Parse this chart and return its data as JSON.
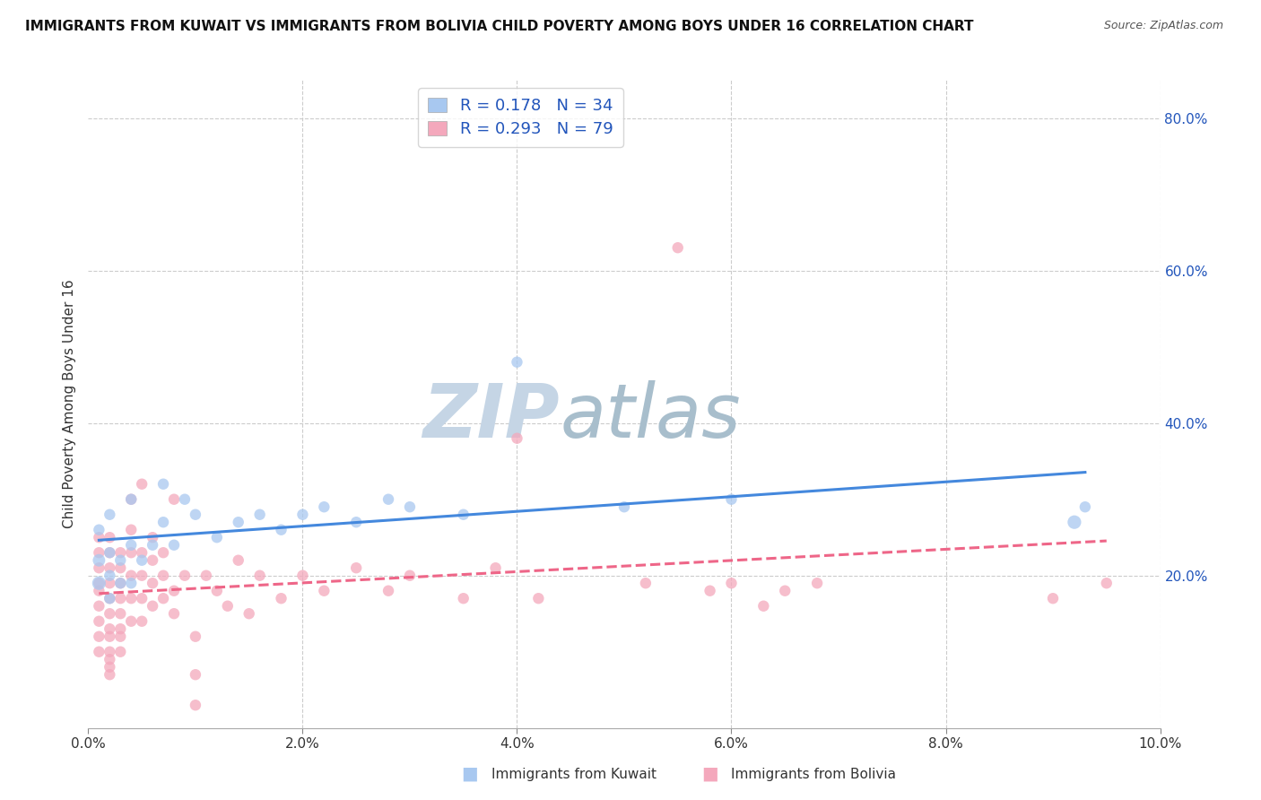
{
  "title": "IMMIGRANTS FROM KUWAIT VS IMMIGRANTS FROM BOLIVIA CHILD POVERTY AMONG BOYS UNDER 16 CORRELATION CHART",
  "source": "Source: ZipAtlas.com",
  "ylabel": "Child Poverty Among Boys Under 16",
  "xlim": [
    0,
    0.1
  ],
  "ylim": [
    0,
    0.85
  ],
  "xticks": [
    0.0,
    0.02,
    0.04,
    0.06,
    0.08,
    0.1
  ],
  "yticks": [
    0.2,
    0.4,
    0.6,
    0.8
  ],
  "kuwait_color": "#a8c8f0",
  "bolivia_color": "#f4a8bc",
  "kuwait_line_color": "#4488dd",
  "bolivia_line_color": "#ee6688",
  "kuwait_R": 0.178,
  "kuwait_N": 34,
  "bolivia_R": 0.293,
  "bolivia_N": 79,
  "legend_text_color": "#2255bb",
  "grid_color": "#cccccc",
  "background_color": "#ffffff",
  "title_fontsize": 11,
  "axis_label_fontsize": 11,
  "tick_fontsize": 11,
  "legend_fontsize": 13,
  "kuwait_x": [
    0.001,
    0.001,
    0.001,
    0.002,
    0.002,
    0.002,
    0.002,
    0.003,
    0.003,
    0.004,
    0.004,
    0.004,
    0.005,
    0.006,
    0.007,
    0.007,
    0.008,
    0.009,
    0.01,
    0.012,
    0.014,
    0.016,
    0.018,
    0.02,
    0.022,
    0.025,
    0.028,
    0.03,
    0.035,
    0.04,
    0.05,
    0.06,
    0.092,
    0.093
  ],
  "kuwait_y": [
    0.19,
    0.22,
    0.26,
    0.17,
    0.2,
    0.23,
    0.28,
    0.19,
    0.22,
    0.19,
    0.24,
    0.3,
    0.22,
    0.24,
    0.27,
    0.32,
    0.24,
    0.3,
    0.28,
    0.25,
    0.27,
    0.28,
    0.26,
    0.28,
    0.29,
    0.27,
    0.3,
    0.29,
    0.28,
    0.48,
    0.29,
    0.3,
    0.27,
    0.29
  ],
  "kuwait_size": [
    120,
    100,
    80,
    80,
    80,
    80,
    80,
    80,
    80,
    80,
    80,
    80,
    80,
    80,
    80,
    80,
    80,
    80,
    80,
    80,
    80,
    80,
    80,
    80,
    80,
    80,
    80,
    80,
    80,
    80,
    80,
    80,
    120,
    80
  ],
  "bolivia_x": [
    0.001,
    0.001,
    0.001,
    0.001,
    0.001,
    0.001,
    0.001,
    0.001,
    0.001,
    0.002,
    0.002,
    0.002,
    0.002,
    0.002,
    0.002,
    0.002,
    0.002,
    0.002,
    0.002,
    0.002,
    0.002,
    0.003,
    0.003,
    0.003,
    0.003,
    0.003,
    0.003,
    0.003,
    0.003,
    0.004,
    0.004,
    0.004,
    0.004,
    0.004,
    0.004,
    0.005,
    0.005,
    0.005,
    0.005,
    0.005,
    0.006,
    0.006,
    0.006,
    0.006,
    0.007,
    0.007,
    0.007,
    0.008,
    0.008,
    0.008,
    0.009,
    0.01,
    0.01,
    0.01,
    0.011,
    0.012,
    0.013,
    0.014,
    0.015,
    0.016,
    0.018,
    0.02,
    0.022,
    0.025,
    0.028,
    0.03,
    0.035,
    0.038,
    0.04,
    0.042,
    0.052,
    0.055,
    0.058,
    0.06,
    0.063,
    0.065,
    0.068,
    0.09,
    0.095
  ],
  "bolivia_y": [
    0.14,
    0.16,
    0.18,
    0.19,
    0.21,
    0.23,
    0.25,
    0.12,
    0.1,
    0.13,
    0.15,
    0.17,
    0.19,
    0.21,
    0.23,
    0.25,
    0.12,
    0.1,
    0.09,
    0.08,
    0.07,
    0.13,
    0.15,
    0.17,
    0.19,
    0.21,
    0.23,
    0.12,
    0.1,
    0.14,
    0.17,
    0.2,
    0.23,
    0.26,
    0.3,
    0.14,
    0.17,
    0.2,
    0.23,
    0.32,
    0.16,
    0.19,
    0.22,
    0.25,
    0.17,
    0.2,
    0.23,
    0.15,
    0.18,
    0.3,
    0.2,
    0.03,
    0.07,
    0.12,
    0.2,
    0.18,
    0.16,
    0.22,
    0.15,
    0.2,
    0.17,
    0.2,
    0.18,
    0.21,
    0.18,
    0.2,
    0.17,
    0.21,
    0.38,
    0.17,
    0.19,
    0.63,
    0.18,
    0.19,
    0.16,
    0.18,
    0.19,
    0.17,
    0.19
  ],
  "bolivia_size": [
    80,
    80,
    80,
    80,
    80,
    80,
    80,
    80,
    80,
    80,
    80,
    80,
    80,
    80,
    80,
    80,
    80,
    80,
    80,
    80,
    80,
    80,
    80,
    80,
    80,
    80,
    80,
    80,
    80,
    80,
    80,
    80,
    80,
    80,
    80,
    80,
    80,
    80,
    80,
    80,
    80,
    80,
    80,
    80,
    80,
    80,
    80,
    80,
    80,
    80,
    80,
    80,
    80,
    80,
    80,
    80,
    80,
    80,
    80,
    80,
    80,
    80,
    80,
    80,
    80,
    80,
    80,
    80,
    80,
    80,
    80,
    80,
    80,
    80,
    80,
    80,
    80,
    80,
    80
  ],
  "watermark_zip_color": "#c8d8e8",
  "watermark_atlas_color": "#a0b8d0"
}
